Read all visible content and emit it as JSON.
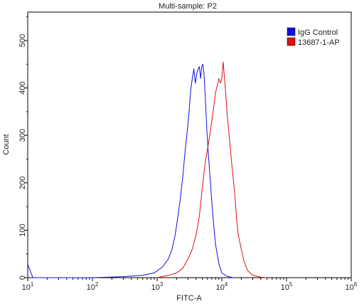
{
  "chart_data": {
    "type": "line",
    "title": "Multi-sample: P2",
    "xlabel": "FITC-A",
    "ylabel": "Count",
    "x_scale": "log",
    "xlim": [
      10,
      1000000
    ],
    "ylim": [
      0,
      560
    ],
    "x_ticks": [
      {
        "value": 10,
        "base": "10",
        "exp": "1"
      },
      {
        "value": 100,
        "base": "10",
        "exp": "2"
      },
      {
        "value": 1000,
        "base": "10",
        "exp": "3"
      },
      {
        "value": 10000,
        "base": "10",
        "exp": "4"
      },
      {
        "value": 100000,
        "base": "10",
        "exp": "5"
      },
      {
        "value": 1000000,
        "base": "10",
        "exp": "6"
      }
    ],
    "y_ticks": [
      "0",
      "100",
      "200",
      "300",
      "400",
      "500"
    ],
    "y_tick_values": [
      0,
      100,
      200,
      300,
      400,
      500
    ],
    "legend_position": "top-right",
    "series": [
      {
        "name": "IgG Control",
        "color": "#1010e0",
        "x": [
          10,
          12,
          20,
          100,
          300,
          600,
          900,
          1200,
          1500,
          1700,
          1900,
          2100,
          2300,
          2500,
          2700,
          2900,
          3100,
          3300,
          3500,
          3700,
          3900,
          4100,
          4300,
          4500,
          4700,
          4900,
          5100,
          5300,
          5500,
          5700,
          5900,
          6200,
          6600,
          7000,
          7500,
          8000,
          9000,
          10000,
          12000,
          15000
        ],
        "y": [
          28,
          0,
          0,
          0,
          2,
          5,
          10,
          22,
          40,
          60,
          90,
          130,
          170,
          215,
          265,
          305,
          345,
          395,
          420,
          440,
          410,
          430,
          440,
          445,
          420,
          445,
          450,
          430,
          390,
          350,
          305,
          260,
          210,
          160,
          110,
          70,
          30,
          10,
          3,
          0
        ]
      },
      {
        "name": "13687-1-AP",
        "color": "#e01010",
        "x": [
          1000,
          1500,
          2000,
          2500,
          3000,
          3500,
          4000,
          4500,
          5000,
          5500,
          6000,
          6500,
          7000,
          7500,
          8000,
          8500,
          9000,
          9500,
          10000,
          10500,
          11000,
          11500,
          12000,
          13000,
          14000,
          15000,
          16000,
          17000,
          18000,
          20000,
          22000,
          25000,
          30000,
          40000,
          50000
        ],
        "y": [
          0,
          5,
          10,
          20,
          40,
          60,
          90,
          130,
          190,
          240,
          270,
          300,
          330,
          360,
          390,
          405,
          420,
          410,
          420,
          455,
          420,
          390,
          350,
          300,
          250,
          210,
          170,
          120,
          90,
          60,
          35,
          15,
          5,
          1,
          0
        ]
      }
    ]
  }
}
